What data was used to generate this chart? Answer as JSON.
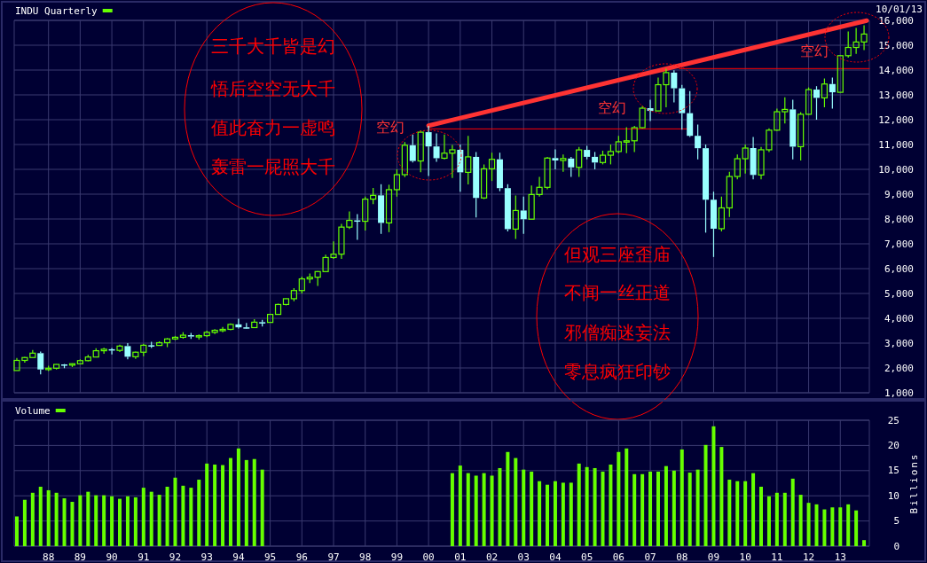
{
  "chart_data": [
    {
      "type": "candlestick",
      "title": "INDU Quarterly",
      "x": [
        "1987-01",
        "1987-04",
        "1987-07",
        "1987-10",
        "1988-01",
        "1988-04",
        "1988-07",
        "1988-10",
        "1989-01",
        "1989-04",
        "1989-07",
        "1989-10",
        "1990-01",
        "1990-04",
        "1990-07",
        "1990-10",
        "1991-01",
        "1991-04",
        "1991-07",
        "1991-10",
        "1992-01",
        "1992-04",
        "1992-07",
        "1992-10",
        "1993-01",
        "1993-04",
        "1993-07",
        "1993-10",
        "1994-01",
        "1994-04",
        "1994-07",
        "1994-10",
        "1995-01",
        "1995-04",
        "1995-07",
        "1995-10",
        "1996-01",
        "1996-04",
        "1996-07",
        "1996-10",
        "1997-01",
        "1997-04",
        "1997-07",
        "1997-10",
        "1998-01",
        "1998-04",
        "1998-07",
        "1998-10",
        "1999-01",
        "1999-04",
        "1999-07",
        "1999-10",
        "2000-01",
        "2000-04",
        "2000-07",
        "2000-10",
        "2001-01",
        "2001-04",
        "2001-07",
        "2001-10",
        "2002-01",
        "2002-04",
        "2002-07",
        "2002-10",
        "2003-01",
        "2003-04",
        "2003-07",
        "2003-10",
        "2004-01",
        "2004-04",
        "2004-07",
        "2004-10",
        "2005-01",
        "2005-04",
        "2005-07",
        "2005-10",
        "2006-01",
        "2006-04",
        "2006-07",
        "2006-10",
        "2007-01",
        "2007-04",
        "2007-07",
        "2007-10",
        "2008-01",
        "2008-04",
        "2008-07",
        "2008-10",
        "2009-01",
        "2009-04",
        "2009-07",
        "2009-10",
        "2010-01",
        "2010-04",
        "2010-07",
        "2010-10",
        "2011-01",
        "2011-04",
        "2011-07",
        "2011-10",
        "2012-01",
        "2012-04",
        "2012-07",
        "2012-10",
        "2013-01",
        "2013-04",
        "2013-07",
        "2013-10"
      ],
      "ohlc": [
        [
          1896,
          2405,
          1896,
          2304
        ],
        [
          2304,
          2446,
          2216,
          2419
        ],
        [
          2419,
          2722,
          2419,
          2596
        ],
        [
          2596,
          2662,
          1739,
          1939
        ],
        [
          1939,
          2087,
          1879,
          1988
        ],
        [
          1988,
          2153,
          1941,
          2142
        ],
        [
          2142,
          2159,
          1990,
          2113
        ],
        [
          2113,
          2184,
          2038,
          2169
        ],
        [
          2169,
          2347,
          2145,
          2294
        ],
        [
          2294,
          2531,
          2265,
          2440
        ],
        [
          2440,
          2791,
          2440,
          2693
        ],
        [
          2693,
          2810,
          2569,
          2753
        ],
        [
          2753,
          2800,
          2543,
          2707
        ],
        [
          2707,
          2936,
          2645,
          2881
        ],
        [
          2881,
          3000,
          2344,
          2452
        ],
        [
          2452,
          2660,
          2365,
          2634
        ],
        [
          2634,
          2974,
          2470,
          2914
        ],
        [
          2914,
          3057,
          2800,
          2907
        ],
        [
          2907,
          3070,
          2900,
          3017
        ],
        [
          3017,
          3204,
          2837,
          3169
        ],
        [
          3169,
          3290,
          3120,
          3235
        ],
        [
          3235,
          3440,
          3180,
          3319
        ],
        [
          3319,
          3413,
          3170,
          3272
        ],
        [
          3272,
          3350,
          3140,
          3301
        ],
        [
          3301,
          3500,
          3240,
          3435
        ],
        [
          3435,
          3560,
          3370,
          3516
        ],
        [
          3516,
          3652,
          3440,
          3555
        ],
        [
          3555,
          3794,
          3520,
          3754
        ],
        [
          3754,
          3978,
          3590,
          3636
        ],
        [
          3636,
          3810,
          3590,
          3625
        ],
        [
          3625,
          3960,
          3610,
          3843
        ],
        [
          3843,
          3936,
          3670,
          3834
        ],
        [
          3834,
          4180,
          3830,
          4158
        ],
        [
          4158,
          4590,
          4150,
          4556
        ],
        [
          4556,
          4800,
          4520,
          4789
        ],
        [
          4789,
          5216,
          4690,
          5117
        ],
        [
          5117,
          5680,
          5000,
          5587
        ],
        [
          5587,
          5800,
          5420,
          5655
        ],
        [
          5655,
          5900,
          5300,
          5882
        ],
        [
          5882,
          6560,
          5870,
          6448
        ],
        [
          6448,
          7100,
          6390,
          6583
        ],
        [
          6583,
          7800,
          6390,
          7673
        ],
        [
          7673,
          8300,
          7600,
          7945
        ],
        [
          7945,
          8200,
          7160,
          7908
        ],
        [
          7908,
          8900,
          7540,
          8800
        ],
        [
          8800,
          9250,
          8600,
          8952
        ],
        [
          8952,
          9400,
          7400,
          7843
        ],
        [
          7843,
          9380,
          7470,
          9181
        ],
        [
          9181,
          10000,
          8900,
          9786
        ],
        [
          9786,
          11100,
          9690,
          10971
        ],
        [
          10971,
          11400,
          10280,
          10337
        ],
        [
          10337,
          11570,
          9880,
          11497
        ],
        [
          11497,
          11750,
          9730,
          10922
        ],
        [
          10922,
          11450,
          10300,
          10448
        ],
        [
          10448,
          11400,
          10400,
          10651
        ],
        [
          10651,
          10980,
          9650,
          10787
        ],
        [
          10787,
          11000,
          9100,
          9879
        ],
        [
          9879,
          11350,
          9390,
          10502
        ],
        [
          10502,
          10700,
          8062,
          8848
        ],
        [
          8848,
          10200,
          8800,
          10022
        ],
        [
          10022,
          10670,
          9530,
          10404
        ],
        [
          10404,
          10670,
          9120,
          9243
        ],
        [
          9243,
          9400,
          7500,
          7592
        ],
        [
          7592,
          8950,
          7200,
          8342
        ],
        [
          8342,
          8900,
          7400,
          7992
        ],
        [
          7992,
          9350,
          7990,
          8985
        ],
        [
          8985,
          9700,
          8900,
          9275
        ],
        [
          9275,
          10500,
          9200,
          10454
        ],
        [
          10454,
          10800,
          10000,
          10358
        ],
        [
          10358,
          10600,
          9900,
          10435
        ],
        [
          10435,
          10500,
          9700,
          10080
        ],
        [
          10080,
          10900,
          9700,
          10783
        ],
        [
          10783,
          10950,
          10400,
          10504
        ],
        [
          10504,
          10700,
          10000,
          10275
        ],
        [
          10275,
          10750,
          10200,
          10569
        ],
        [
          10569,
          11000,
          10200,
          10718
        ],
        [
          10718,
          11350,
          10650,
          11109
        ],
        [
          11109,
          11700,
          10650,
          11150
        ],
        [
          11150,
          11750,
          10700,
          11679
        ],
        [
          11679,
          12550,
          11650,
          12463
        ],
        [
          12463,
          12800,
          11950,
          12354
        ],
        [
          12354,
          13700,
          12350,
          13409
        ],
        [
          13409,
          14050,
          12500,
          13896
        ],
        [
          13896,
          13990,
          12700,
          13265
        ],
        [
          13265,
          13400,
          11600,
          12263
        ],
        [
          12263,
          13150,
          11300,
          11350
        ],
        [
          11350,
          11800,
          10400,
          10851
        ],
        [
          10851,
          11000,
          7450,
          8776
        ],
        [
          8776,
          9100,
          6470,
          7609
        ],
        [
          7609,
          8900,
          7500,
          8447
        ],
        [
          8447,
          9900,
          8080,
          9712
        ],
        [
          9712,
          10600,
          9600,
          10428
        ],
        [
          10428,
          11000,
          9830,
          10857
        ],
        [
          10857,
          11300,
          9600,
          9774
        ],
        [
          9774,
          10900,
          9600,
          10788
        ],
        [
          10788,
          11650,
          10700,
          11578
        ],
        [
          11578,
          12450,
          11550,
          12320
        ],
        [
          12320,
          12900,
          11850,
          12414
        ],
        [
          12414,
          12800,
          10400,
          10913
        ],
        [
          10913,
          12300,
          10360,
          12218
        ],
        [
          12218,
          13300,
          12200,
          13212
        ],
        [
          13212,
          13350,
          12000,
          12880
        ],
        [
          12880,
          13660,
          12500,
          13437
        ],
        [
          13437,
          13700,
          12450,
          13104
        ],
        [
          13104,
          14600,
          13100,
          14579
        ],
        [
          14579,
          15550,
          14500,
          14910
        ],
        [
          14910,
          15700,
          14650,
          15130
        ],
        [
          15130,
          15800,
          14800,
          15450
        ]
      ],
      "series": [
        {
          "type": "line",
          "color": "#ff3333",
          "x": [
            "2000-01",
            "2013-11"
          ],
          "values": [
            11760,
            15990
          ]
        },
        {
          "type": "line",
          "color": "#ff0000",
          "x": [
            "2000-01",
            "2008-03"
          ],
          "values": [
            11630,
            11630
          ]
        },
        {
          "type": "line",
          "color": "#ff0000",
          "x": [
            "2007-12",
            "2013-12"
          ],
          "values": [
            14060,
            14060
          ]
        }
      ],
      "xlim": [
        "1986-12",
        "2013-12"
      ],
      "ylim": [
        1000,
        16000
      ],
      "xticks": [
        {
          "value": "1988-01",
          "label": null
        },
        {
          "value": "1989-01",
          "label": null
        },
        {
          "value": "1990-01",
          "label": null
        },
        {
          "value": "1991-01",
          "label": null
        },
        {
          "value": "1992-01",
          "label": null
        },
        {
          "value": "1993-01",
          "label": null
        },
        {
          "value": "1994-01",
          "label": null
        },
        {
          "value": "1995-01",
          "label": null
        },
        {
          "value": "1996-01",
          "label": null
        },
        {
          "value": "1997-01",
          "label": null
        },
        {
          "value": "1998-01",
          "label": null
        },
        {
          "value": "1999-01",
          "label": null
        },
        {
          "value": "2000-01",
          "label": null
        },
        {
          "value": "2001-01",
          "label": null
        },
        {
          "value": "2002-01",
          "label": null
        },
        {
          "value": "2003-01",
          "label": null
        },
        {
          "value": "2004-01",
          "label": null
        },
        {
          "value": "2005-01",
          "label": null
        },
        {
          "value": "2006-01",
          "label": null
        },
        {
          "value": "2007-01",
          "label": null
        },
        {
          "value": "2008-01",
          "label": null
        },
        {
          "value": "2009-01",
          "label": null
        },
        {
          "value": "2010-01",
          "label": null
        },
        {
          "value": "2011-01",
          "label": null
        },
        {
          "value": "2012-01",
          "label": null
        },
        {
          "value": "2013-01",
          "label": null
        }
      ],
      "yticks": [
        {
          "value": 1000,
          "label": "1,000"
        },
        {
          "value": 2000,
          "label": "2,000"
        },
        {
          "value": 3000,
          "label": "3,000"
        },
        {
          "value": 4000,
          "label": "4,000"
        },
        {
          "value": 5000,
          "label": "5,000"
        },
        {
          "value": 6000,
          "label": "6,000"
        },
        {
          "value": 7000,
          "label": "7,000"
        },
        {
          "value": 8000,
          "label": "8,000"
        },
        {
          "value": 9000,
          "label": "9,000"
        },
        {
          "value": 10000,
          "label": "10,000"
        },
        {
          "value": 11000,
          "label": "11,000"
        },
        {
          "value": 12000,
          "label": "12,000"
        },
        {
          "value": 13000,
          "label": "13,000"
        },
        {
          "value": 14000,
          "label": "14,000"
        },
        {
          "value": 15000,
          "label": "15,000"
        },
        {
          "value": 16000,
          "label": "16,000"
        }
      ],
      "grid": true,
      "tick_labels": "y",
      "annotations": [
        "三千大千皆是幻",
        "悟后空空无大千",
        "值此奋力一虚鸣",
        "轰雷一屁照大千",
        "但观三座歪庙",
        "不闻一丝正道",
        "邪僧痴迷妄法",
        "零息疯狂印钞",
        "10/01/13",
        "空幻",
        "空幻",
        "空幻"
      ]
    },
    {
      "type": "bar",
      "title": "Volume",
      "ylabel": "Billions",
      "color": "#66ff00",
      "x": [
        "1987-01",
        "1987-04",
        "1987-07",
        "1987-10",
        "1988-01",
        "1988-04",
        "1988-07",
        "1988-10",
        "1989-01",
        "1989-04",
        "1989-07",
        "1989-10",
        "1990-01",
        "1990-04",
        "1990-07",
        "1990-10",
        "1991-01",
        "1991-04",
        "1991-07",
        "1991-10",
        "1992-01",
        "1992-04",
        "1992-07",
        "1992-10",
        "1993-01",
        "1993-04",
        "1993-07",
        "1993-10",
        "1994-01",
        "1994-04",
        "1994-07",
        "1994-10",
        "2000-10",
        "2001-01",
        "2001-04",
        "2001-07",
        "2001-10",
        "2002-01",
        "2002-04",
        "2002-07",
        "2002-10",
        "2003-01",
        "2003-04",
        "2003-07",
        "2003-10",
        "2004-01",
        "2004-04",
        "2004-07",
        "2004-10",
        "2005-01",
        "2005-04",
        "2005-07",
        "2005-10",
        "2006-01",
        "2006-04",
        "2006-07",
        "2006-10",
        "2007-01",
        "2007-04",
        "2007-07",
        "2007-10",
        "2008-01",
        "2008-04",
        "2008-07",
        "2008-10",
        "2009-01",
        "2009-04",
        "2009-07",
        "2009-10",
        "2010-01",
        "2010-04",
        "2010-07",
        "2010-10",
        "2011-01",
        "2011-04",
        "2011-07",
        "2011-10",
        "2012-01",
        "2012-04",
        "2012-07",
        "2012-10",
        "2013-01",
        "2013-04",
        "2013-07",
        "2013-10"
      ],
      "values": [
        5.9,
        9.2,
        10.6,
        11.8,
        11.1,
        10.6,
        9.5,
        8.8,
        10.1,
        10.8,
        10.1,
        10.1,
        9.9,
        9.4,
        9.9,
        9.7,
        11.6,
        10.8,
        10.2,
        11.8,
        13.6,
        12.0,
        11.6,
        13.2,
        16.4,
        16.2,
        16.1,
        17.5,
        19.4,
        17.1,
        17.3,
        15.2,
        14.5,
        16.0,
        14.5,
        14.0,
        14.5,
        14.0,
        15.5,
        18.7,
        17.5,
        15.2,
        14.8,
        12.9,
        12.2,
        12.9,
        12.6,
        12.6,
        16.4,
        15.7,
        15.5,
        14.8,
        16.2,
        18.7,
        19.4,
        14.3,
        14.3,
        14.8,
        14.8,
        15.9,
        15.0,
        19.2,
        14.6,
        15.2,
        20.1,
        23.8,
        19.7,
        13.2,
        12.9,
        12.9,
        14.5,
        11.8,
        9.9,
        10.6,
        10.6,
        13.4,
        10.2,
        8.6,
        8.3,
        7.3,
        7.7,
        7.7,
        8.3,
        7.1,
        1.2
      ],
      "xlim": [
        "1986-12",
        "2013-12"
      ],
      "ylim": [
        0,
        25
      ],
      "yticks": [
        0,
        5,
        10,
        15,
        20,
        25
      ],
      "xticks": [
        {
          "value": "1988-01",
          "label": "88"
        },
        {
          "value": "1989-01",
          "label": "89"
        },
        {
          "value": "1990-01",
          "label": "90"
        },
        {
          "value": "1991-01",
          "label": "91"
        },
        {
          "value": "1992-01",
          "label": "92"
        },
        {
          "value": "1993-01",
          "label": "93"
        },
        {
          "value": "1994-01",
          "label": "94"
        },
        {
          "value": "1995-01",
          "label": "95"
        },
        {
          "value": "1996-01",
          "label": "96"
        },
        {
          "value": "1997-01",
          "label": "97"
        },
        {
          "value": "1998-01",
          "label": "98"
        },
        {
          "value": "1999-01",
          "label": "99"
        },
        {
          "value": "2000-01",
          "label": "00"
        },
        {
          "value": "2001-01",
          "label": "01"
        },
        {
          "value": "2002-01",
          "label": "02"
        },
        {
          "value": "2003-01",
          "label": "03"
        },
        {
          "value": "2004-01",
          "label": "04"
        },
        {
          "value": "2005-01",
          "label": "05"
        },
        {
          "value": "2006-01",
          "label": "06"
        },
        {
          "value": "2007-01",
          "label": "07"
        },
        {
          "value": "2008-01",
          "label": "08"
        },
        {
          "value": "2009-01",
          "label": "09"
        },
        {
          "value": "2010-01",
          "label": "10"
        },
        {
          "value": "2011-01",
          "label": "11"
        },
        {
          "value": "2012-01",
          "label": "12"
        },
        {
          "value": "2013-01",
          "label": "13"
        }
      ],
      "grid": true
    }
  ]
}
